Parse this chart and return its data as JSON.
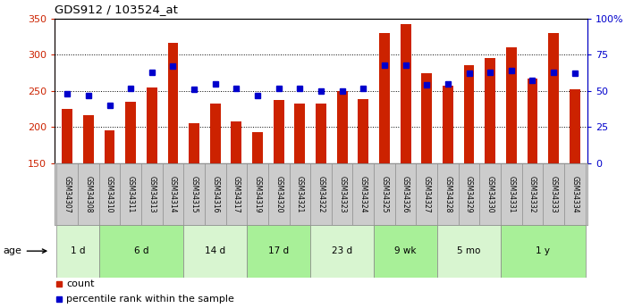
{
  "title": "GDS912 / 103524_at",
  "samples": [
    "GSM34307",
    "GSM34308",
    "GSM34310",
    "GSM34311",
    "GSM34313",
    "GSM34314",
    "GSM34315",
    "GSM34316",
    "GSM34317",
    "GSM34319",
    "GSM34320",
    "GSM34321",
    "GSM34322",
    "GSM34323",
    "GSM34324",
    "GSM34325",
    "GSM34326",
    "GSM34327",
    "GSM34328",
    "GSM34329",
    "GSM34330",
    "GSM34331",
    "GSM34332",
    "GSM34333",
    "GSM34334"
  ],
  "counts": [
    225,
    217,
    195,
    235,
    255,
    316,
    205,
    232,
    208,
    193,
    238,
    233,
    233,
    250,
    239,
    330,
    342,
    275,
    257,
    286,
    295,
    310,
    267,
    330,
    252
  ],
  "percentiles": [
    48,
    47,
    40,
    52,
    63,
    67,
    51,
    55,
    52,
    47,
    52,
    52,
    50,
    50,
    52,
    68,
    68,
    54,
    55,
    62,
    63,
    64,
    57,
    63,
    62
  ],
  "age_groups": [
    {
      "label": "1 d",
      "start": 0,
      "end": 2,
      "color": "#d8f5d0"
    },
    {
      "label": "6 d",
      "start": 2,
      "end": 6,
      "color": "#a8f098"
    },
    {
      "label": "14 d",
      "start": 6,
      "end": 9,
      "color": "#d8f5d0"
    },
    {
      "label": "17 d",
      "start": 9,
      "end": 12,
      "color": "#a8f098"
    },
    {
      "label": "23 d",
      "start": 12,
      "end": 15,
      "color": "#d8f5d0"
    },
    {
      "label": "9 wk",
      "start": 15,
      "end": 18,
      "color": "#a8f098"
    },
    {
      "label": "5 mo",
      "start": 18,
      "end": 21,
      "color": "#d8f5d0"
    },
    {
      "label": "1 y",
      "start": 21,
      "end": 25,
      "color": "#a8f098"
    }
  ],
  "bar_color": "#cc2200",
  "marker_color": "#0000cc",
  "left_ylim": [
    150,
    350
  ],
  "right_ylim": [
    0,
    100
  ],
  "left_yticks": [
    150,
    200,
    250,
    300,
    350
  ],
  "right_yticks": [
    0,
    25,
    50,
    75,
    100
  ],
  "right_yticklabels": [
    "0",
    "25",
    "50",
    "75",
    "100%"
  ],
  "bar_width": 0.5,
  "sample_label_bg": "#cccccc",
  "age_label_color": "#888888"
}
